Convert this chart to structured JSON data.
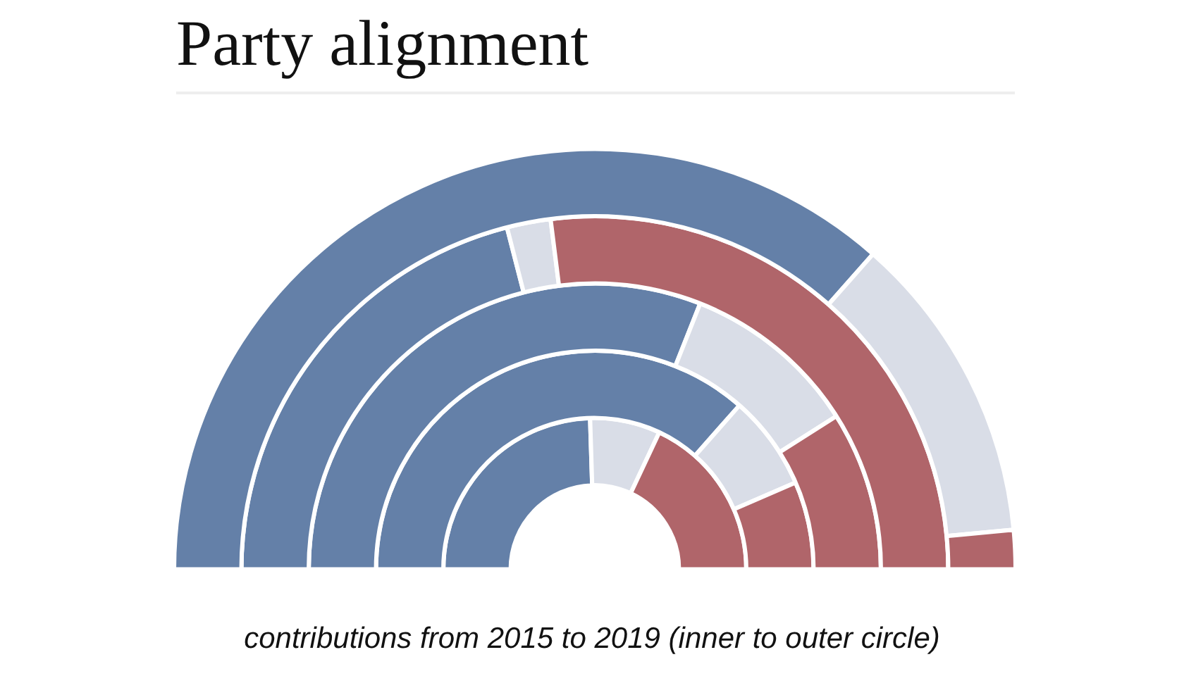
{
  "chart_data": {
    "type": "donut",
    "title": "Party alignment",
    "categories": [
      null,
      null,
      null
    ],
    "colors": [
      "#6480a8",
      "#d9dde7",
      "#b0656a"
    ],
    "series": [
      {
        "values": [
          73,
          24,
          3
        ]
      },
      {
        "values": [
          42,
          4,
          54
        ]
      },
      {
        "values": [
          62,
          20,
          18
        ]
      },
      {
        "values": [
          73,
          14,
          13
        ]
      },
      {
        "values": [
          49,
          15,
          36
        ]
      }
    ],
    "legend": false,
    "annotations": [
      "contributions from 2015 to 2019 (inner to outer circle)"
    ]
  }
}
